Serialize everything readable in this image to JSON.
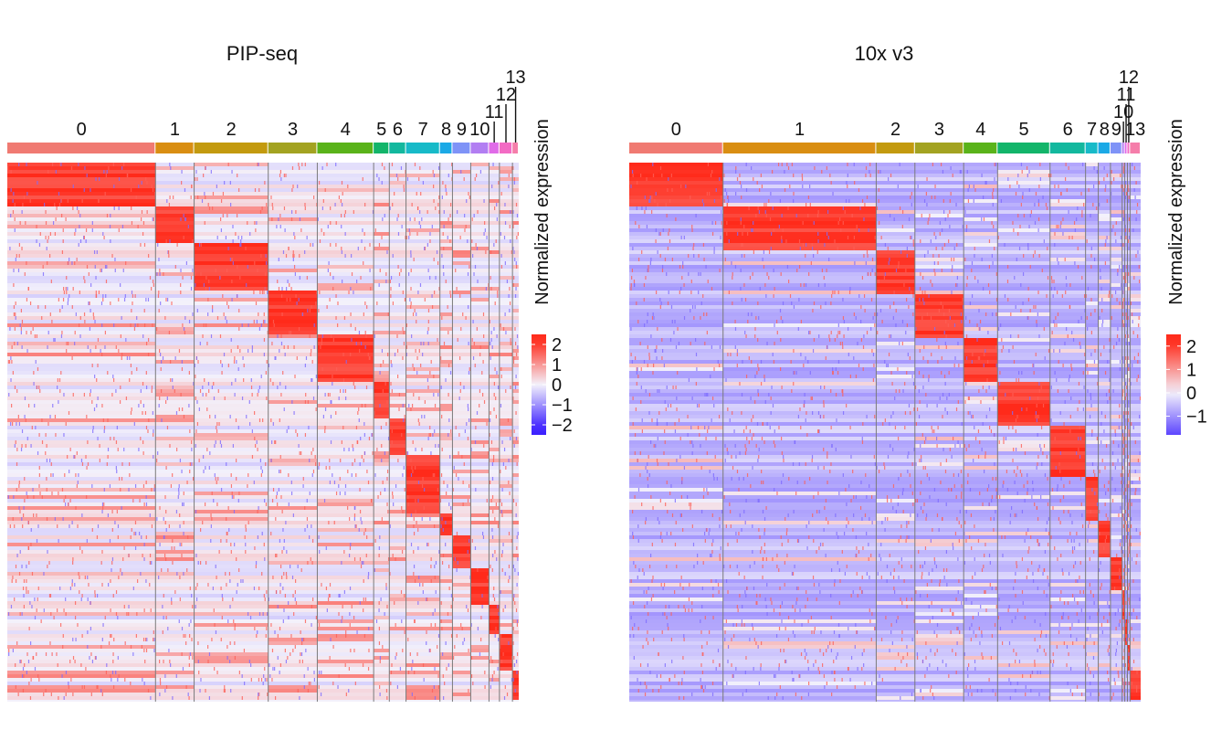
{
  "colors": {
    "low": "#3b1fff",
    "mid": "#f3f1fb",
    "high": "#ff2a1a",
    "cluster_palette": [
      "#f07a72",
      "#d98e12",
      "#c39a0f",
      "#a3a321",
      "#5ab31a",
      "#13b56a",
      "#13b89e",
      "#17bac8",
      "#1ba9e6",
      "#7f93f7",
      "#b27ef2",
      "#e06be8",
      "#f36bc4",
      "#f57eaa"
    ]
  },
  "chart_data": [
    {
      "type": "heatmap",
      "title": "PIP-seq",
      "clusters": [
        "0",
        "1",
        "2",
        "3",
        "4",
        "5",
        "6",
        "7",
        "8",
        "9",
        "10",
        "11",
        "12",
        "13"
      ],
      "cluster_label_rows": [
        0,
        0,
        0,
        0,
        0,
        0,
        0,
        0,
        0,
        0,
        0,
        1,
        2,
        3
      ],
      "cluster_cell_fractions": [
        0.284,
        0.074,
        0.142,
        0.094,
        0.108,
        0.03,
        0.032,
        0.065,
        0.024,
        0.035,
        0.035,
        0.02,
        0.025,
        0.012
      ],
      "marker_block_fractions": [
        0.07,
        0.06,
        0.08,
        0.07,
        0.08,
        0.06,
        0.06,
        0.09,
        0.04,
        0.05,
        0.06,
        0.05,
        0.06,
        0.05
      ],
      "colorbar": {
        "label": "Normalized expression",
        "ticks": [
          2,
          1,
          0,
          -1,
          -2
        ],
        "tick_labels": [
          "2",
          "1",
          "0",
          "−1",
          "−2"
        ],
        "range": [
          -2.5,
          2.5
        ]
      },
      "baseline": 0.0,
      "seed": 11
    },
    {
      "type": "heatmap",
      "title": "10x v3",
      "clusters": [
        "0",
        "1",
        "2",
        "3",
        "4",
        "5",
        "6",
        "7",
        "8",
        "9",
        "10",
        "11",
        "12",
        "13"
      ],
      "cluster_label_rows": [
        0,
        0,
        0,
        0,
        0,
        0,
        0,
        0,
        0,
        0,
        1,
        2,
        3,
        0
      ],
      "cluster_cell_fractions": [
        0.177,
        0.289,
        0.073,
        0.092,
        0.064,
        0.099,
        0.067,
        0.024,
        0.023,
        0.022,
        0.005,
        0.005,
        0.005,
        0.02
      ],
      "marker_block_fractions": [
        0.07,
        0.07,
        0.07,
        0.07,
        0.07,
        0.07,
        0.08,
        0.07,
        0.06,
        0.05,
        0.05,
        0.04,
        0.04,
        0.05
      ],
      "colorbar": {
        "label": "Normalized expression",
        "ticks": [
          2,
          1,
          0,
          -1
        ],
        "tick_labels": [
          "2",
          "1",
          "0",
          "−1"
        ],
        "range": [
          -1.8,
          2.5
        ]
      },
      "baseline": -0.6,
      "seed": 29
    }
  ]
}
